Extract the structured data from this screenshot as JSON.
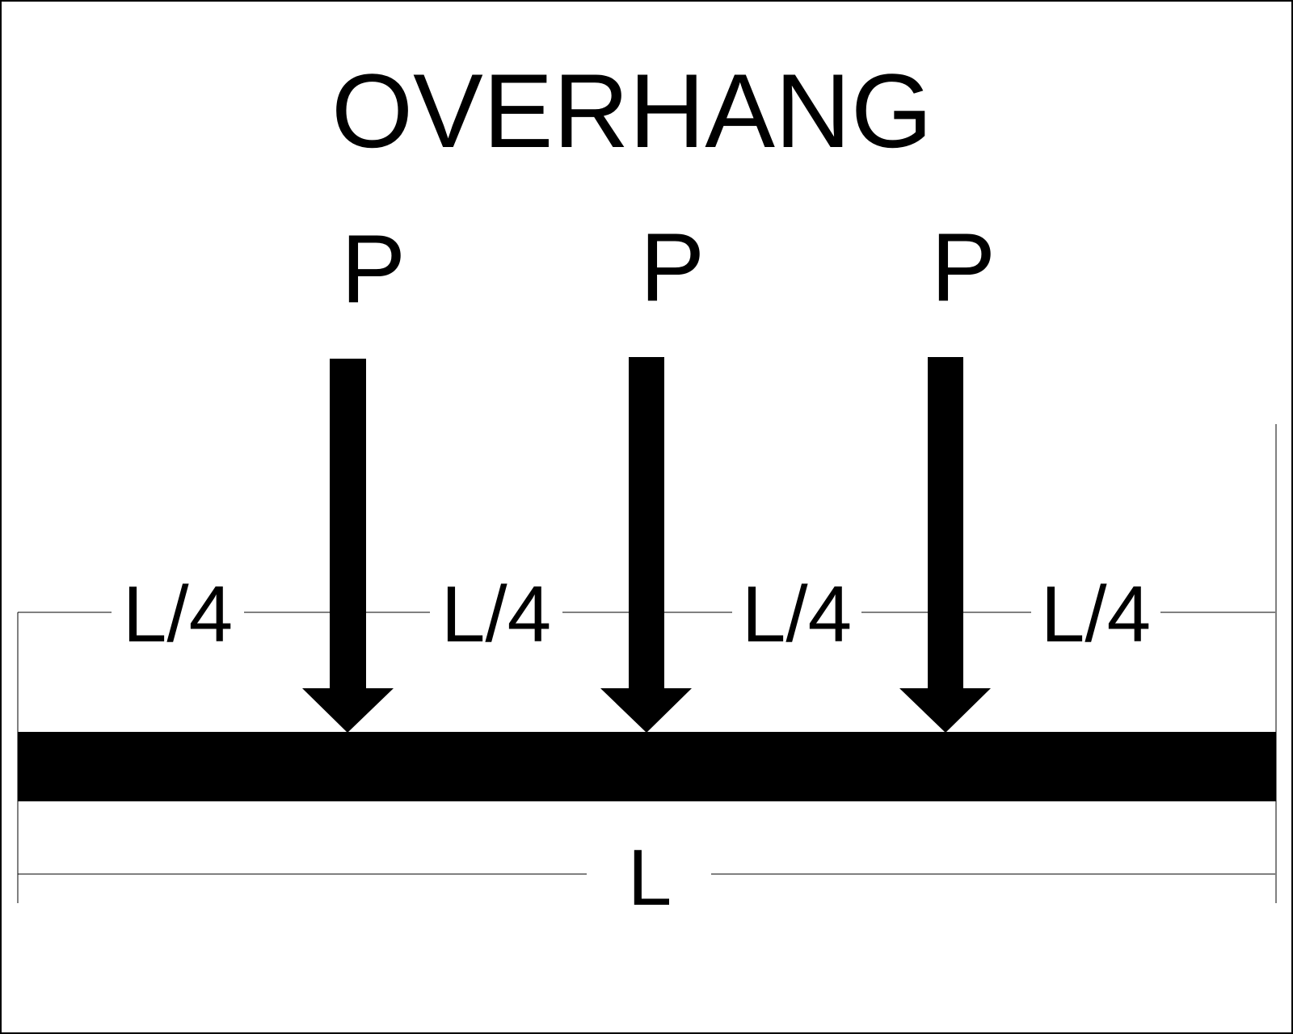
{
  "diagram": {
    "title": "OVERHANG",
    "loads": [
      {
        "label": "P"
      },
      {
        "label": "P"
      },
      {
        "label": "P"
      }
    ],
    "segments": [
      {
        "label": "L/4"
      },
      {
        "label": "L/4"
      },
      {
        "label": "L/4"
      },
      {
        "label": "L/4"
      }
    ],
    "total_length_label": "L",
    "colors": {
      "ink": "#000000",
      "background": "#ffffff"
    }
  }
}
